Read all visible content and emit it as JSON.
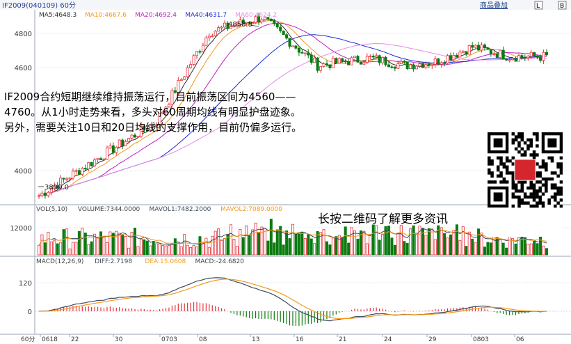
{
  "header": {
    "title": "IF2009(040109) 60分",
    "right_label": "商品叠加",
    "btn_l": "L",
    "btn_b": "B"
  },
  "colors": {
    "ma5": "#2b2b2b",
    "ma10": "#f39a1a",
    "ma20": "#c01ec0",
    "ma40": "#1a2bd6",
    "ma60": "#e68ae6",
    "up": "#e8313b",
    "down": "#0a7a10",
    "diff": "#3d4a5a",
    "dea": "#f39a1a"
  },
  "price_panel": {
    "legend": [
      {
        "label": "MA5:4648.3",
        "color": "#2b2b2b"
      },
      {
        "label": "MA10:4667.6",
        "color": "#f39a1a"
      },
      {
        "label": "MA20:4692.4",
        "color": "#c01ec0"
      },
      {
        "label": "MA40:4631.7",
        "color": "#1a2bd6"
      },
      {
        "label": "MA60:4624.2",
        "color": "#e68ae6"
      }
    ],
    "y_ticks": [
      "4800",
      "4600",
      "4000"
    ],
    "high_label": "4858.8",
    "low_label": "3899.0"
  },
  "volume_panel": {
    "legend": [
      {
        "label": "VOL(5,10)",
        "color": "#444444"
      },
      {
        "label": "VOLUME:7344.0000",
        "color": "#444444"
      },
      {
        "label": "MAVOL1:7482.2000",
        "color": "#3d4a5a"
      },
      {
        "label": "MAVOL2:7089.0000",
        "color": "#f39a1a"
      }
    ],
    "y_ticks": [
      "12000"
    ]
  },
  "macd_panel": {
    "legend": [
      {
        "label": "MACD(12,26,9)",
        "color": "#444444"
      },
      {
        "label": "DIFF:2.7198",
        "color": "#3d4a5a"
      },
      {
        "label": "DEA:15.0608",
        "color": "#f39a1a"
      },
      {
        "label": "MACD:-24.6820",
        "color": "#444444"
      }
    ],
    "y_ticks": [
      "120",
      "0"
    ]
  },
  "x_axis": {
    "period": "60分",
    "labels": [
      "0618",
      "22",
      "30",
      "0703",
      "08",
      "13",
      "16",
      "21",
      "24",
      "29",
      "0803",
      "06"
    ]
  },
  "annotation": "IF2009合约短期继续维持振荡运行，目前振荡区间为4560——4760。从1小时走势来看，多头对60周期均线有明显护盘迹象。另外，需要关注10日和20日均线的支撑作用，目前仍偏多运行。",
  "qr_caption": "长按二维码了解更多资讯",
  "chart_data": {
    "type": "candlestick",
    "title": "IF2009(040109) 60分",
    "ylim": [
      3850,
      4900
    ],
    "price_anchor_points": [
      {
        "x": "0618",
        "price": 3899.0
      },
      {
        "x": "0703",
        "price": 4300
      },
      {
        "x": "08",
        "price": 4780
      },
      {
        "x": "13",
        "price": 4858.8
      },
      {
        "x": "16",
        "price": 4600
      },
      {
        "x": "21",
        "price": 4640
      },
      {
        "x": "24",
        "price": 4600
      },
      {
        "x": "29",
        "price": 4620
      },
      {
        "x": "0803",
        "price": 4700
      },
      {
        "x": "06",
        "price": 4648.3
      }
    ],
    "moving_averages": {
      "MA5": 4648.3,
      "MA10": 4667.6,
      "MA20": 4692.4,
      "MA40": 4631.7,
      "MA60": 4624.2
    },
    "volume": {
      "VOLUME": 7344.0,
      "MAVOL1": 7482.2,
      "MAVOL2": 7089.0
    },
    "macd": {
      "DIFF": 2.7198,
      "DEA": 15.0608,
      "MACD": -24.682
    }
  }
}
